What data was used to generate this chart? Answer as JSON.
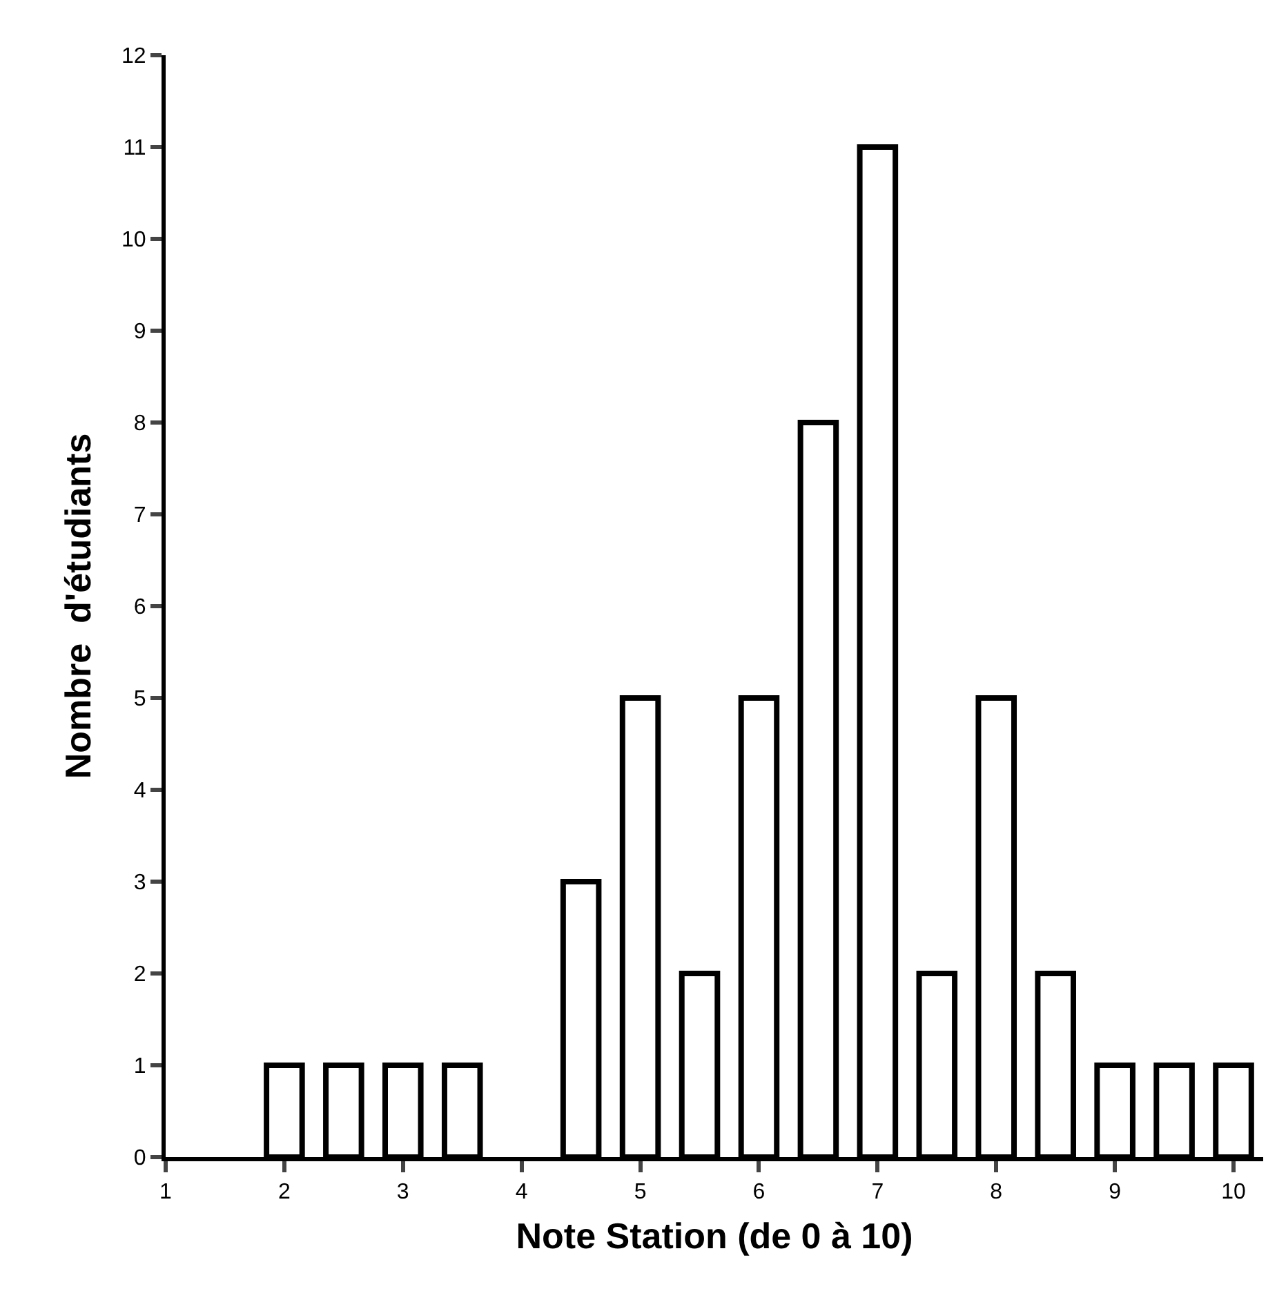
{
  "chart_data": {
    "type": "bar",
    "xlabel": "Note Station (de 0 à 10)",
    "ylabel": "Nombre  d'étudiants",
    "x": [
      2,
      2.5,
      3,
      3.5,
      4.5,
      5,
      5.5,
      6,
      6.5,
      7,
      7.5,
      8,
      8.5,
      9,
      9.5,
      10
    ],
    "values": [
      1,
      1,
      1,
      1,
      3,
      5,
      2,
      5,
      8,
      11,
      2,
      5,
      2,
      1,
      1,
      1
    ],
    "color": "#ffffff",
    "xlim": [
      1,
      10.25
    ],
    "xticks": [
      1,
      2,
      3,
      4,
      5,
      6,
      7,
      8,
      9,
      10
    ],
    "ylim": [
      0,
      12
    ],
    "yticks": [
      0,
      1,
      2,
      3,
      4,
      5,
      6,
      7,
      8,
      9,
      10,
      11,
      12
    ],
    "legend": false
  }
}
